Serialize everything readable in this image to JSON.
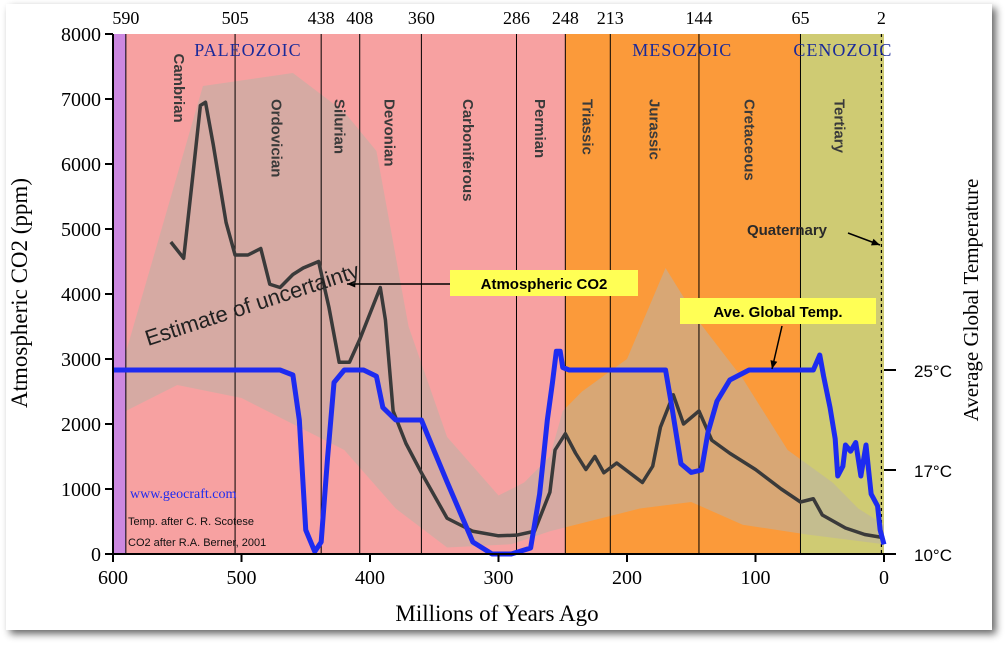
{
  "chart_data": {
    "type": "line",
    "xlabel": "Millions of Years Ago",
    "ylabel": "Atmospheric CO2 (ppm)",
    "y2label": "Average Global Temperature",
    "xlim": [
      600,
      0
    ],
    "ylim": [
      0,
      8000
    ],
    "x_ticks": [
      600,
      500,
      400,
      300,
      200,
      100,
      0
    ],
    "y_ticks": [
      0,
      1000,
      2000,
      3000,
      4000,
      5000,
      6000,
      7000,
      8000
    ],
    "y2_ticks": [
      {
        "label": "25°C",
        "temp": 25
      },
      {
        "label": "17°C",
        "temp": 17
      },
      {
        "label": "10°C",
        "temp": 10
      }
    ],
    "boundaries": [
      {
        "label": "590",
        "x": 590
      },
      {
        "label": "505",
        "x": 505
      },
      {
        "label": "438",
        "x": 438
      },
      {
        "label": "408",
        "x": 408
      },
      {
        "label": "360",
        "x": 360
      },
      {
        "label": "286",
        "x": 286
      },
      {
        "label": "248",
        "x": 248
      },
      {
        "label": "213",
        "x": 213
      },
      {
        "label": "144",
        "x": 144
      },
      {
        "label": "65",
        "x": 65
      },
      {
        "label": "2",
        "x": 2
      }
    ],
    "eras": [
      {
        "label": "PALEOZOIC",
        "x": 495
      },
      {
        "label": "MESOZOIC",
        "x": 157
      },
      {
        "label": "CENOZOIC",
        "x": 32
      }
    ],
    "periods": [
      {
        "label": "Cambrian",
        "x": 548,
        "y_top": 7700,
        "color": "#f7a1a1"
      },
      {
        "label": "Ordovician",
        "x": 472,
        "y_top": 7000,
        "color": "#f7a1a1"
      },
      {
        "label": "Silurian",
        "x": 423,
        "y_top": 7000,
        "color": "#f7a1a1"
      },
      {
        "label": "Devonian",
        "x": 384,
        "y_top": 7000,
        "color": "#f7a1a1"
      },
      {
        "label": "Carboniferous",
        "x": 323,
        "y_top": 7000,
        "color": "#f7a1a1"
      },
      {
        "label": "Permian",
        "x": 267,
        "y_top": 7000,
        "color": "#f7a1a1"
      },
      {
        "label": "Triassic",
        "x": 230,
        "y_top": 7000,
        "color": "#fb9a3a"
      },
      {
        "label": "Jurassic",
        "x": 178,
        "y_top": 7000,
        "color": "#fb9a3a"
      },
      {
        "label": "Cretaceous",
        "x": 104,
        "y_top": 7000,
        "color": "#fb9a3a"
      },
      {
        "label": "Tertiary",
        "x": 34,
        "y_top": 7000,
        "color": "#cfcb73"
      }
    ],
    "colors": {
      "early_strip": "#cc88e0",
      "paleozoic": "#f7a1a1",
      "mesozoic": "#fb9a3a",
      "cenozoic": "#cfcb73",
      "era_text": "#1a2a9a",
      "co2_line": "#3a3a3a",
      "temp_line": "#1d2bf0",
      "callout_bg": "#ffff55",
      "uncertainty": "#bbb2a6"
    },
    "series": [
      {
        "name": "Atmospheric CO2",
        "unit": "ppm",
        "points": [
          [
            555,
            4800
          ],
          [
            545,
            4550
          ],
          [
            538,
            5800
          ],
          [
            532,
            6900
          ],
          [
            528,
            6950
          ],
          [
            522,
            6300
          ],
          [
            512,
            5100
          ],
          [
            505,
            4600
          ],
          [
            495,
            4600
          ],
          [
            485,
            4700
          ],
          [
            478,
            4150
          ],
          [
            470,
            4100
          ],
          [
            460,
            4300
          ],
          [
            452,
            4400
          ],
          [
            440,
            4500
          ],
          [
            432,
            3800
          ],
          [
            424,
            2950
          ],
          [
            416,
            2950
          ],
          [
            408,
            3300
          ],
          [
            398,
            3800
          ],
          [
            392,
            4100
          ],
          [
            388,
            3600
          ],
          [
            382,
            2200
          ],
          [
            372,
            1700
          ],
          [
            360,
            1250
          ],
          [
            340,
            550
          ],
          [
            320,
            350
          ],
          [
            300,
            280
          ],
          [
            286,
            290
          ],
          [
            272,
            350
          ],
          [
            260,
            950
          ],
          [
            256,
            1600
          ],
          [
            248,
            1850
          ],
          [
            240,
            1550
          ],
          [
            232,
            1300
          ],
          [
            225,
            1500
          ],
          [
            218,
            1250
          ],
          [
            208,
            1400
          ],
          [
            198,
            1250
          ],
          [
            188,
            1100
          ],
          [
            180,
            1350
          ],
          [
            174,
            1950
          ],
          [
            164,
            2450
          ],
          [
            156,
            2000
          ],
          [
            144,
            2200
          ],
          [
            134,
            1750
          ],
          [
            120,
            1550
          ],
          [
            100,
            1300
          ],
          [
            80,
            1000
          ],
          [
            65,
            800
          ],
          [
            55,
            850
          ],
          [
            48,
            600
          ],
          [
            30,
            400
          ],
          [
            15,
            300
          ],
          [
            0,
            250
          ]
        ]
      },
      {
        "name": "Ave. Global Temp.",
        "unit": "°C",
        "points": [
          [
            600,
            25
          ],
          [
            470,
            25
          ],
          [
            460,
            24.6
          ],
          [
            455,
            21
          ],
          [
            450,
            12
          ],
          [
            443,
            10.2
          ],
          [
            438,
            11
          ],
          [
            433,
            18
          ],
          [
            428,
            24
          ],
          [
            420,
            25
          ],
          [
            405,
            25
          ],
          [
            395,
            24.5
          ],
          [
            390,
            22
          ],
          [
            380,
            21
          ],
          [
            360,
            21
          ],
          [
            352,
            19
          ],
          [
            340,
            16
          ],
          [
            320,
            11
          ],
          [
            305,
            10
          ],
          [
            290,
            10
          ],
          [
            275,
            10.5
          ],
          [
            268,
            15
          ],
          [
            265,
            18
          ],
          [
            262,
            21
          ],
          [
            258,
            24
          ],
          [
            255,
            26.5
          ],
          [
            252,
            26.5
          ],
          [
            250,
            25.2
          ],
          [
            245,
            25
          ],
          [
            170,
            25
          ],
          [
            165,
            22
          ],
          [
            158,
            17.5
          ],
          [
            150,
            16.8
          ],
          [
            142,
            17
          ],
          [
            137,
            20
          ],
          [
            130,
            22.5
          ],
          [
            120,
            24.2
          ],
          [
            105,
            25
          ],
          [
            55,
            25
          ],
          [
            50,
            26.2
          ],
          [
            47,
            24.5
          ],
          [
            42,
            22
          ],
          [
            38,
            19.5
          ],
          [
            36,
            16.5
          ],
          [
            32,
            17.3
          ],
          [
            30,
            19
          ],
          [
            26,
            18.5
          ],
          [
            22,
            19.2
          ],
          [
            18,
            16.5
          ],
          [
            14,
            19
          ],
          [
            12,
            17
          ],
          [
            10,
            15
          ],
          [
            5,
            14
          ],
          [
            3,
            12
          ],
          [
            0,
            10.8
          ]
        ]
      }
    ],
    "callouts": [
      {
        "text": "Atmospheric CO2"
      },
      {
        "text": "Ave. Global Temp."
      },
      {
        "text": "Quaternary"
      }
    ],
    "annotation": "Estimate of uncertainty",
    "credits": [
      "www.geocraft.com",
      "Temp. after C. R. Scotese",
      "CO2 after R.A. Berner, 2001"
    ]
  }
}
